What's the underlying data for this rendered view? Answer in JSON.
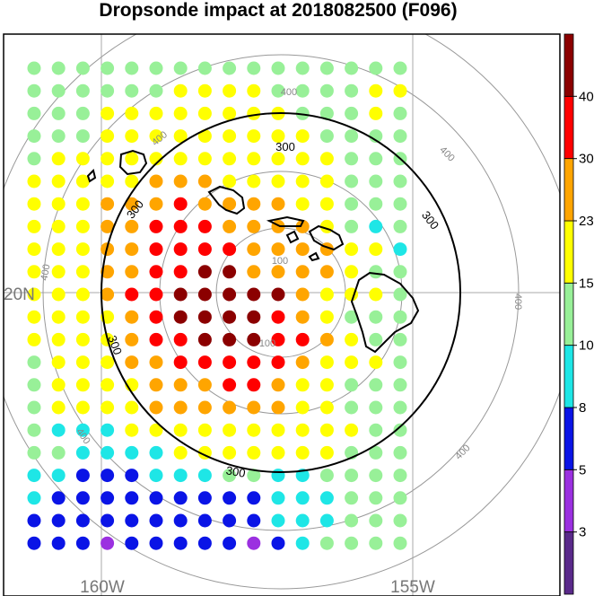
{
  "title": "Dropsonde impact at 2018082500 (F096)",
  "map": {
    "lat_labels": [
      "20N"
    ],
    "lon_labels": [
      "160W",
      "155W"
    ],
    "range_ring_labels": [
      "100",
      "100",
      "300",
      "300",
      "300",
      "300",
      "300",
      "400",
      "400",
      "400",
      "400",
      "400",
      "400",
      "400"
    ]
  },
  "colorbar": {
    "levels": [
      "3",
      "5",
      "8",
      "10",
      "15",
      "23",
      "30",
      "40"
    ],
    "colors": [
      "#5a2a8a",
      "#9b30e0",
      "#0a14e6",
      "#1ee6e6",
      "#98f098",
      "#ffff00",
      "#ffa500",
      "#ff0000",
      "#8b0000"
    ]
  },
  "legend_classes": {
    "c0": "#5a2a8a",
    "c1": "#9b30e0",
    "c2": "#0a14e6",
    "c3": "#1ee6e6",
    "c4": "#98f098",
    "c5": "#ffff00",
    "c6": "#ffa500",
    "c7": "#ff0000",
    "c8": "#8b0000"
  },
  "dot_grid": [
    "4444444444444444",
    "4444445555444455",
    "4445555555544454",
    "4445555555554444",
    "4555555555555444",
    "5555566655555444",
    "5556667666655444",
    "5556677766665434",
    "5556677776666553",
    "5556677886666544",
    "5556778888865554",
    "5555678888765444",
    "5555677888776544",
    "4555667777765554",
    "4555566677655444",
    "4555566666655444",
    "4333555555555544",
    "4433335555555444",
    "3322233344334444",
    "3222222222333444",
    "2222222222333444",
    "2221222221234444"
  ]
}
